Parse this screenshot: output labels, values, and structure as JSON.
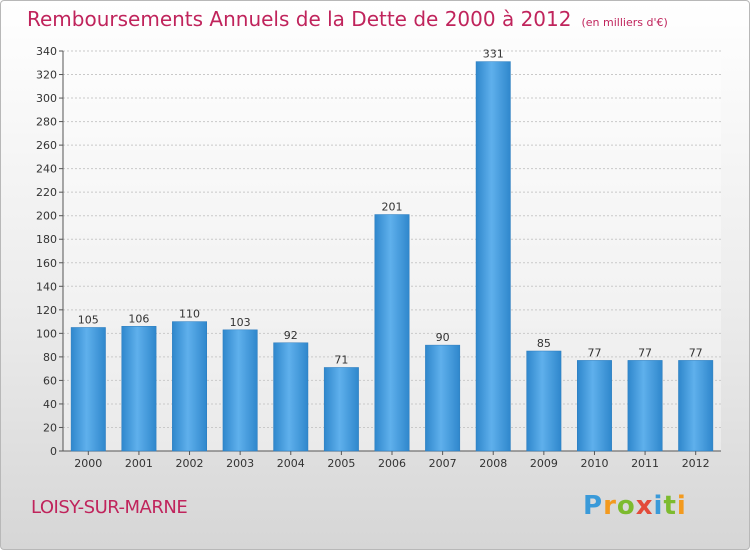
{
  "title": "Remboursements Annuels de la Dette de 2000 à 2012",
  "subtitle": "(en milliers d'€)",
  "location": "LOISY-SUR-MARNE",
  "logo": "Proxiti",
  "colors": {
    "bar": "#3f97da",
    "title": "#c0245c"
  },
  "chart_data": {
    "type": "bar",
    "title": "Remboursements Annuels de la Dette de 2000 à 2012",
    "subtitle": "(en milliers d'€)",
    "categories": [
      "2000",
      "2001",
      "2002",
      "2003",
      "2004",
      "2005",
      "2006",
      "2007",
      "2008",
      "2009",
      "2010",
      "2011",
      "2012"
    ],
    "values": [
      105,
      106,
      110,
      103,
      92,
      71,
      201,
      90,
      331,
      85,
      77,
      77,
      77
    ],
    "ylim": [
      0,
      340
    ],
    "yticks": [
      0,
      20,
      40,
      60,
      80,
      100,
      120,
      140,
      160,
      180,
      200,
      220,
      240,
      260,
      280,
      300,
      320,
      340
    ],
    "grid": true
  }
}
